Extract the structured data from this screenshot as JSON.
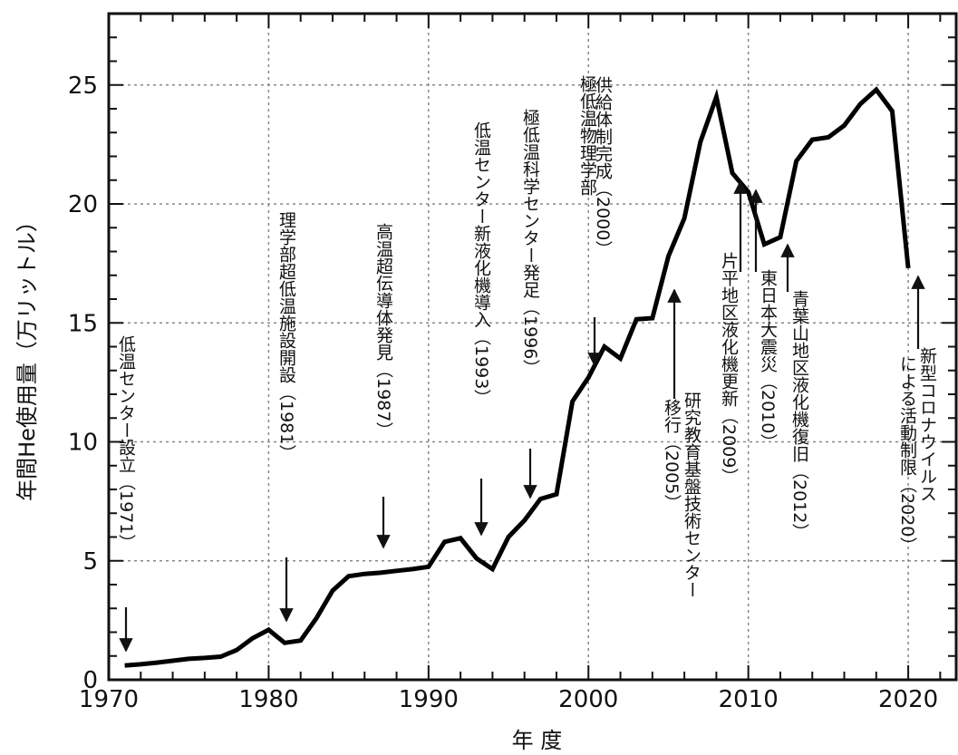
{
  "chart_data": {
    "type": "line",
    "xlabel": "年 度",
    "ylabel": "年間He使用量（万リットル）",
    "xlim": [
      1970,
      2023
    ],
    "ylim": [
      0,
      28
    ],
    "xticks": [
      1970,
      1980,
      1990,
      2000,
      2010,
      2020
    ],
    "yticks": [
      0,
      5,
      10,
      15,
      20,
      25
    ],
    "grid": true,
    "series": [
      {
        "x": [
          1971,
          1972,
          1973,
          1974,
          1975,
          1976,
          1977,
          1978,
          1979,
          1980,
          1981,
          1982,
          1983,
          1984,
          1985,
          1986,
          1987,
          1988,
          1989,
          1990,
          1991,
          1992,
          1993,
          1994,
          1995,
          1996,
          1997,
          1998,
          1999,
          2000,
          2001,
          2002,
          2003,
          2004,
          2005,
          2006,
          2007,
          2008,
          2009,
          2010,
          2011,
          2012,
          2013,
          2014,
          2015,
          2016,
          2017,
          2018,
          2019,
          2020
        ],
        "y": [
          0.6,
          0.65,
          0.72,
          0.8,
          0.88,
          0.92,
          0.97,
          1.25,
          1.75,
          2.1,
          1.55,
          1.65,
          2.6,
          3.75,
          4.35,
          4.45,
          4.5,
          4.58,
          4.65,
          4.75,
          5.8,
          5.95,
          5.1,
          4.65,
          6.0,
          6.7,
          7.6,
          7.8,
          11.7,
          12.7,
          14.0,
          13.5,
          15.15,
          15.2,
          17.8,
          19.4,
          22.6,
          24.5,
          21.3,
          20.5,
          18.3,
          18.6,
          21.8,
          22.7,
          22.8,
          23.3,
          24.2,
          24.8,
          23.9,
          17.3
        ]
      }
    ],
    "annotations": [
      {
        "text": "低温センター設立（1971）",
        "x": 1971,
        "y": 0.6
      },
      {
        "text": "理学部超低温施設開設（1981）",
        "x": 1981,
        "y": 1.55
      },
      {
        "text": "高温超伝導体発見（1987）",
        "x": 1987,
        "y": 4.5
      },
      {
        "text": "低温センター新液化機導入（1993）",
        "x": 1993,
        "y": 5.1
      },
      {
        "text": "極低温科学センター発足（1996）",
        "x": 1996,
        "y": 6.7
      },
      {
        "text": "極低温物理学部",
        "x": 2000,
        "y": 12.7
      },
      {
        "text": "供給体制完成（2000）",
        "x": 2000,
        "y": 12.7
      },
      {
        "text": "研究教育基盤技術センター",
        "x": 2005,
        "y": 17.8
      },
      {
        "text": "移行（2005）",
        "x": 2005,
        "y": 17.8
      },
      {
        "text": "片平地区液化機更新（2009）",
        "x": 2009,
        "y": 21.3
      },
      {
        "text": "東日本大震災（2010）",
        "x": 2010,
        "y": 20.5
      },
      {
        "text": "青葉山地区液化機復旧（2012）",
        "x": 2012,
        "y": 18.6
      },
      {
        "text": "新型コロナウイルス",
        "x": 2020,
        "y": 17.3
      },
      {
        "text": "による活動制限（2020）",
        "x": 2020,
        "y": 17.3
      }
    ]
  }
}
